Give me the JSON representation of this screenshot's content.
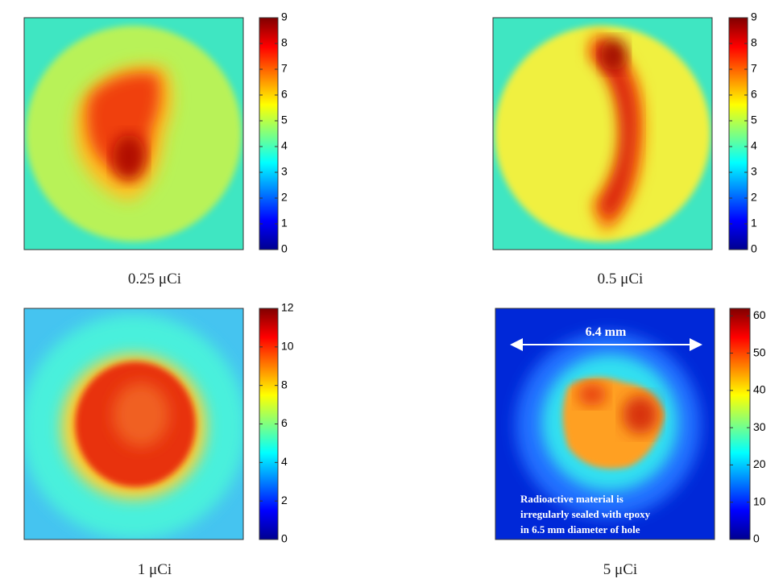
{
  "chart_data": [
    {
      "type": "heatmap",
      "caption": "0.25 μCi",
      "colormap": "jet",
      "clim": [
        0,
        9
      ],
      "cticks": [
        0,
        1,
        2,
        3,
        4,
        5,
        6,
        7,
        8,
        9
      ]
    },
    {
      "type": "heatmap",
      "caption": "0.5 μCi",
      "colormap": "jet",
      "clim": [
        0,
        9
      ],
      "cticks": [
        0,
        1,
        2,
        3,
        4,
        5,
        6,
        7,
        8,
        9
      ]
    },
    {
      "type": "heatmap",
      "caption": "1 μCi",
      "colormap": "jet",
      "clim": [
        0,
        12
      ],
      "cticks": [
        0,
        2,
        4,
        6,
        8,
        10,
        12
      ]
    },
    {
      "type": "heatmap",
      "caption": "5 μCi",
      "colormap": "jet",
      "clim": [
        0,
        62
      ],
      "cticks": [
        0,
        10,
        20,
        30,
        40,
        50,
        60
      ],
      "annotations": [
        "6.4 mm",
        "Radioactive material  is",
        "irregularly sealed with epoxy",
        "in 6.5 mm diameter of hole"
      ]
    }
  ]
}
